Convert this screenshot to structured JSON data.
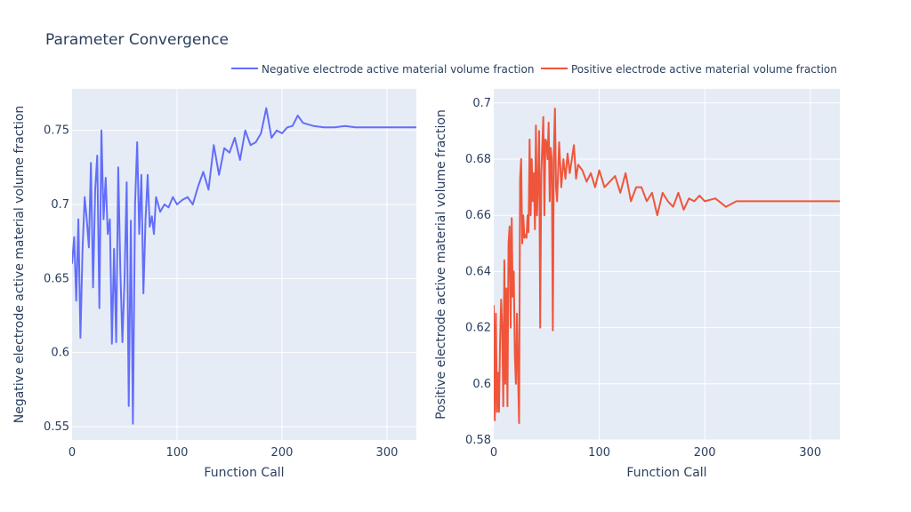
{
  "title": "Parameter Convergence",
  "colors": {
    "plot_bg": "#E5ECF6",
    "grid": "#ffffff",
    "text": "#2a3f5f"
  },
  "legend": [
    {
      "name": "Negative electrode active material volume fraction",
      "color": "#636EFA"
    },
    {
      "name": "Positive electrode active material volume fraction",
      "color": "#EF553B"
    }
  ],
  "chart_data": [
    {
      "type": "line",
      "title": "",
      "xlabel": "Function Call",
      "ylabel": "Negative electrode active material volume fraction",
      "xlim": [
        0,
        328
      ],
      "ylim": [
        0.541,
        0.778
      ],
      "xticks": [
        0,
        100,
        200,
        300
      ],
      "xtick_labels": [
        "0",
        "100",
        "200",
        "300"
      ],
      "yticks": [
        0.55,
        0.6,
        0.65,
        0.7,
        0.75
      ],
      "ytick_labels": [
        "0.55",
        "0.6",
        "0.65",
        "0.7",
        "0.75"
      ],
      "grid": true,
      "series": [
        {
          "name": "Negative electrode active material volume fraction",
          "color": "#636EFA",
          "x": [
            0,
            2,
            4,
            6,
            8,
            10,
            12,
            14,
            16,
            18,
            20,
            22,
            24,
            26,
            28,
            30,
            32,
            34,
            36,
            38,
            40,
            42,
            44,
            46,
            48,
            50,
            52,
            54,
            56,
            58,
            60,
            62,
            64,
            66,
            68,
            70,
            72,
            74,
            76,
            78,
            80,
            84,
            88,
            92,
            96,
            100,
            105,
            110,
            115,
            120,
            125,
            130,
            135,
            140,
            145,
            150,
            155,
            160,
            165,
            170,
            175,
            180,
            185,
            190,
            195,
            200,
            205,
            210,
            215,
            220,
            230,
            240,
            250,
            260,
            270,
            280,
            290,
            300,
            310,
            320,
            328
          ],
          "y": [
            0.66,
            0.678,
            0.635,
            0.69,
            0.61,
            0.67,
            0.705,
            0.69,
            0.671,
            0.728,
            0.644,
            0.71,
            0.733,
            0.63,
            0.75,
            0.69,
            0.718,
            0.68,
            0.69,
            0.606,
            0.67,
            0.607,
            0.725,
            0.655,
            0.607,
            0.65,
            0.715,
            0.564,
            0.689,
            0.552,
            0.7,
            0.742,
            0.68,
            0.72,
            0.64,
            0.69,
            0.72,
            0.685,
            0.692,
            0.68,
            0.705,
            0.695,
            0.7,
            0.698,
            0.705,
            0.7,
            0.703,
            0.705,
            0.7,
            0.712,
            0.722,
            0.71,
            0.74,
            0.72,
            0.738,
            0.735,
            0.745,
            0.73,
            0.75,
            0.74,
            0.742,
            0.748,
            0.765,
            0.745,
            0.75,
            0.748,
            0.752,
            0.753,
            0.76,
            0.755,
            0.753,
            0.752,
            0.752,
            0.753,
            0.752,
            0.752,
            0.752,
            0.752,
            0.752,
            0.752,
            0.752
          ]
        }
      ]
    },
    {
      "type": "line",
      "title": "",
      "xlabel": "Function Call",
      "ylabel": "Positive electrode active material volume fraction",
      "xlim": [
        0,
        328
      ],
      "ylim": [
        0.58,
        0.705
      ],
      "xticks": [
        0,
        100,
        200,
        300
      ],
      "xtick_labels": [
        "0",
        "100",
        "200",
        "300"
      ],
      "yticks": [
        0.58,
        0.6,
        0.62,
        0.64,
        0.66,
        0.68,
        0.7
      ],
      "ytick_labels": [
        "0.58",
        "0.6",
        "0.62",
        "0.64",
        "0.66",
        "0.68",
        "0.7"
      ],
      "grid": true,
      "series": [
        {
          "name": "Positive electrode active material volume fraction",
          "color": "#EF553B",
          "x": [
            0,
            1,
            2,
            3,
            4,
            5,
            6,
            7,
            8,
            9,
            10,
            11,
            12,
            13,
            14,
            15,
            16,
            17,
            18,
            19,
            20,
            21,
            22,
            23,
            24,
            25,
            26,
            27,
            28,
            29,
            30,
            31,
            32,
            33,
            34,
            35,
            36,
            37,
            38,
            39,
            40,
            41,
            42,
            43,
            44,
            45,
            46,
            47,
            48,
            49,
            50,
            51,
            52,
            53,
            54,
            55,
            56,
            57,
            58,
            59,
            60,
            62,
            64,
            66,
            68,
            70,
            72,
            74,
            76,
            78,
            80,
            84,
            88,
            92,
            96,
            100,
            105,
            110,
            115,
            120,
            125,
            130,
            135,
            140,
            145,
            150,
            155,
            160,
            165,
            170,
            175,
            180,
            185,
            190,
            195,
            200,
            210,
            220,
            230,
            240,
            250,
            260,
            270,
            280,
            290,
            300,
            310,
            320,
            328
          ],
          "y": [
            0.628,
            0.587,
            0.625,
            0.59,
            0.604,
            0.59,
            0.615,
            0.63,
            0.62,
            0.592,
            0.644,
            0.6,
            0.634,
            0.592,
            0.65,
            0.656,
            0.62,
            0.659,
            0.631,
            0.64,
            0.61,
            0.6,
            0.625,
            0.603,
            0.586,
            0.673,
            0.68,
            0.65,
            0.66,
            0.652,
            0.653,
            0.652,
            0.66,
            0.654,
            0.687,
            0.66,
            0.68,
            0.665,
            0.675,
            0.655,
            0.692,
            0.66,
            0.672,
            0.69,
            0.62,
            0.675,
            0.685,
            0.695,
            0.66,
            0.687,
            0.686,
            0.68,
            0.693,
            0.665,
            0.684,
            0.68,
            0.619,
            0.683,
            0.698,
            0.67,
            0.665,
            0.686,
            0.67,
            0.68,
            0.673,
            0.682,
            0.675,
            0.68,
            0.685,
            0.673,
            0.678,
            0.676,
            0.672,
            0.675,
            0.67,
            0.676,
            0.67,
            0.672,
            0.674,
            0.668,
            0.675,
            0.665,
            0.67,
            0.67,
            0.665,
            0.668,
            0.66,
            0.668,
            0.665,
            0.663,
            0.668,
            0.662,
            0.666,
            0.665,
            0.667,
            0.665,
            0.666,
            0.663,
            0.665,
            0.665,
            0.665,
            0.665,
            0.665,
            0.665,
            0.665,
            0.665,
            0.665,
            0.665,
            0.665
          ]
        }
      ]
    }
  ]
}
